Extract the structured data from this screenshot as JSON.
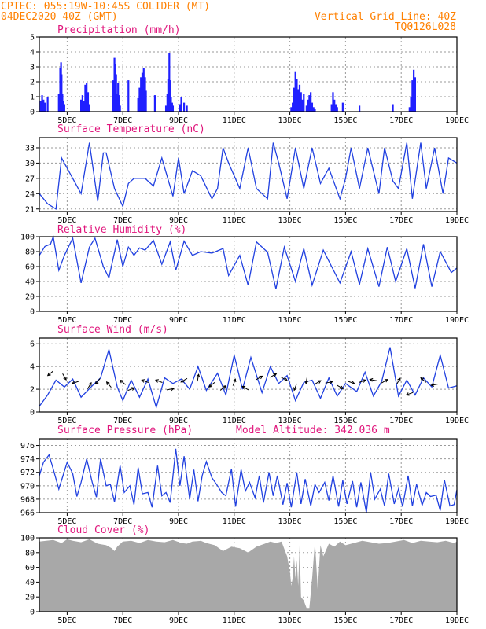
{
  "header": {
    "line1": "CPTEC:   055:19W-10:45S   COLIDER (MT)",
    "line2": "04DEC2020 40Z (GMT)",
    "grid_note": "Vertical Grid Line: 40Z",
    "code": "TQ0126L028"
  },
  "colors": {
    "header": "#ff8000",
    "title": "#e0167c",
    "line": "#2040e0",
    "bar": "#2020ff",
    "cloud": "#a8a8a8",
    "grid": "#9a9a9a"
  },
  "chart_data": [
    {
      "type": "bar",
      "title": "Precipitation (mm/h)",
      "ylim": [
        0,
        5
      ],
      "yticks": [
        "0",
        "1",
        "2",
        "3",
        "4",
        "5"
      ],
      "xticks": [
        "5DEC",
        "7DEC",
        "9DEC",
        "11DEC",
        "13DEC",
        "15DEC",
        "17DEC",
        "19DEC"
      ],
      "grid": true,
      "x_days": [
        4.05,
        4.1,
        4.15,
        4.2,
        4.3,
        4.7,
        4.72,
        4.75,
        4.78,
        4.8,
        4.83,
        4.86,
        4.9,
        5.5,
        5.55,
        5.6,
        5.65,
        5.7,
        5.75,
        5.78,
        6.65,
        6.7,
        6.73,
        6.76,
        6.8,
        6.83,
        6.86,
        6.9,
        7.2,
        7.55,
        7.6,
        7.65,
        7.7,
        7.75,
        7.8,
        7.83,
        8.15,
        8.55,
        8.6,
        8.63,
        8.67,
        8.7,
        8.73,
        8.77,
        8.8,
        9.05,
        9.1,
        9.2,
        9.3,
        13.05,
        13.1,
        13.15,
        13.2,
        13.25,
        13.3,
        13.35,
        13.4,
        13.45,
        13.5,
        13.6,
        13.65,
        13.7,
        13.75,
        13.8,
        13.85,
        13.9,
        14.5,
        14.55,
        14.6,
        14.65,
        14.7,
        14.9,
        15.5,
        16.7,
        17.3,
        17.35,
        17.4,
        17.45,
        17.5
      ],
      "values": [
        0.7,
        1.1,
        0.8,
        0.6,
        1.0,
        1.2,
        1.0,
        2.9,
        3.3,
        2.5,
        1.2,
        0.7,
        0.5,
        0.8,
        1.1,
        0.7,
        1.8,
        1.9,
        1.3,
        0.5,
        2.1,
        3.6,
        3.2,
        2.5,
        1.2,
        1.9,
        1.1,
        0.4,
        2.1,
        0.9,
        1.6,
        2.3,
        2.6,
        2.9,
        2.3,
        1.4,
        1.1,
        0.4,
        1.2,
        2.2,
        3.9,
        2.1,
        1.0,
        0.6,
        0.4,
        0.5,
        1.0,
        0.6,
        0.4,
        0.3,
        0.6,
        1.6,
        2.7,
        2.2,
        1.5,
        1.8,
        1.3,
        0.8,
        1.2,
        0.4,
        0.8,
        1.1,
        1.3,
        0.6,
        0.3,
        0.2,
        0.5,
        1.3,
        0.8,
        0.5,
        0.3,
        0.6,
        0.4,
        0.5,
        0.3,
        1.0,
        2.1,
        2.8,
        2.3
      ]
    },
    {
      "type": "line",
      "title": "Surface Temperature (nC)",
      "ylim": [
        20.5,
        35
      ],
      "yticks": [
        "21",
        "24",
        "27",
        "30",
        "33"
      ],
      "xticks": [
        "5DEC",
        "7DEC",
        "9DEC",
        "11DEC",
        "13DEC",
        "15DEC",
        "17DEC",
        "19DEC"
      ],
      "grid": true,
      "x_days": [
        4.0,
        4.3,
        4.6,
        4.8,
        5.2,
        5.5,
        5.8,
        6.1,
        6.3,
        6.4,
        6.7,
        7.0,
        7.2,
        7.4,
        7.5,
        7.8,
        8.1,
        8.4,
        8.8,
        9.0,
        9.2,
        9.5,
        9.8,
        10.2,
        10.4,
        10.6,
        10.8,
        11.2,
        11.5,
        11.8,
        12.2,
        12.4,
        12.6,
        12.9,
        13.2,
        13.5,
        13.8,
        14.1,
        14.4,
        14.8,
        15.0,
        15.2,
        15.5,
        15.8,
        16.2,
        16.4,
        16.7,
        16.9,
        17.2,
        17.4,
        17.7,
        17.9,
        18.2,
        18.5,
        18.7,
        19.0
      ],
      "values": [
        24,
        22,
        21,
        31,
        27,
        24,
        34,
        22.5,
        32,
        32,
        25,
        21.5,
        26,
        27,
        27,
        27,
        25.5,
        31,
        23.5,
        31,
        24,
        28.5,
        27.5,
        23,
        25,
        33,
        30,
        25,
        33,
        25,
        23,
        34,
        30,
        23,
        33,
        25,
        33,
        26,
        29,
        23,
        27,
        33,
        25,
        33,
        24,
        33,
        26.5,
        25,
        34,
        23,
        34,
        25,
        33,
        24,
        31,
        30
      ]
    },
    {
      "type": "line",
      "title": "Relative Humidity (%)",
      "ylim": [
        0,
        100
      ],
      "yticks": [
        "0",
        "20",
        "40",
        "60",
        "80",
        "100"
      ],
      "xticks": [
        "5DEC",
        "7DEC",
        "9DEC",
        "11DEC",
        "13DEC",
        "15DEC",
        "17DEC",
        "19DEC"
      ],
      "grid": true,
      "x_days": [
        4.0,
        4.2,
        4.4,
        4.5,
        4.7,
        4.9,
        5.2,
        5.5,
        5.8,
        6.0,
        6.3,
        6.5,
        6.8,
        7.0,
        7.2,
        7.4,
        7.6,
        7.8,
        8.1,
        8.4,
        8.7,
        8.9,
        9.2,
        9.5,
        9.8,
        10.2,
        10.6,
        10.8,
        11.2,
        11.5,
        11.8,
        12.2,
        12.5,
        12.8,
        13.2,
        13.5,
        13.8,
        14.2,
        14.5,
        14.8,
        15.2,
        15.5,
        15.8,
        16.2,
        16.5,
        16.8,
        17.2,
        17.5,
        17.8,
        18.1,
        18.4,
        18.8,
        19.0
      ],
      "values": [
        75,
        87,
        90,
        100,
        55,
        75,
        98,
        38,
        86,
        98,
        60,
        45,
        96,
        60,
        86,
        75,
        85,
        82,
        95,
        63,
        93,
        55,
        94,
        75,
        80,
        78,
        84,
        48,
        75,
        35,
        93,
        79,
        30,
        86,
        40,
        84,
        35,
        82,
        60,
        38,
        80,
        36,
        84,
        33,
        86,
        40,
        84,
        31,
        90,
        33,
        80,
        52,
        58
      ]
    },
    {
      "type": "line",
      "title": "Surface Wind (m/s)",
      "ylim": [
        0,
        6.5
      ],
      "yticks": [
        "0",
        "2",
        "4",
        "6"
      ],
      "xticks": [
        "5DEC",
        "7DEC",
        "9DEC",
        "11DEC",
        "13DEC",
        "15DEC",
        "17DEC",
        "19DEC"
      ],
      "grid": true,
      "x_days": [
        4.0,
        4.3,
        4.6,
        4.9,
        5.2,
        5.5,
        5.9,
        6.2,
        6.5,
        6.8,
        7.0,
        7.3,
        7.6,
        7.9,
        8.2,
        8.5,
        8.8,
        9.1,
        9.4,
        9.7,
        10.0,
        10.4,
        10.7,
        11.0,
        11.3,
        11.6,
        12.0,
        12.3,
        12.6,
        12.9,
        13.2,
        13.5,
        13.8,
        14.1,
        14.4,
        14.7,
        15.0,
        15.4,
        15.7,
        16.0,
        16.3,
        16.6,
        16.9,
        17.2,
        17.5,
        17.8,
        18.1,
        18.4,
        18.7,
        19.0
      ],
      "values": [
        0.5,
        1.5,
        2.8,
        2.2,
        2.9,
        1.3,
        2.3,
        3.0,
        5.5,
        2.2,
        1.0,
        2.8,
        1.3,
        2.9,
        0.4,
        3.0,
        2.5,
        2.9,
        2.0,
        4.0,
        1.9,
        3.4,
        1.5,
        5.0,
        2.0,
        4.8,
        1.7,
        4.0,
        2.5,
        3.2,
        1.0,
        2.6,
        2.8,
        1.2,
        3.0,
        1.4,
        2.5,
        1.8,
        3.5,
        1.4,
        2.7,
        5.7,
        1.4,
        2.8,
        1.5,
        3.0,
        2.2,
        5.0,
        2.1,
        2.3
      ],
      "arrow_days": [
        4.4,
        4.9,
        5.3,
        5.8,
        6.1,
        6.5,
        7.0,
        7.3,
        7.8,
        8.3,
        8.7,
        9.2,
        9.7,
        10.2,
        10.6,
        11.0,
        11.4,
        11.9,
        12.4,
        12.8,
        13.2,
        13.6,
        14.0,
        14.4,
        14.8,
        15.2,
        15.6,
        16.0,
        16.4,
        16.9,
        17.3,
        17.8,
        18.2
      ],
      "arrow_speed": [
        3.4,
        3.1,
        2.6,
        2.3,
        2.7,
        2.4,
        2.6,
        2.0,
        2.7,
        2.7,
        2.0,
        2.8,
        3.0,
        2.4,
        2.1,
        2.6,
        2.1,
        3.0,
        3.2,
        2.9,
        2.2,
        2.8,
        2.6,
        2.6,
        2.2,
        2.6,
        2.7,
        2.8,
        2.7,
        2.7,
        1.6,
        2.8,
        2.4
      ],
      "arrow_angle": [
        220,
        300,
        200,
        60,
        230,
        130,
        140,
        20,
        160,
        160,
        10,
        210,
        80,
        220,
        40,
        70,
        150,
        30,
        30,
        330,
        250,
        260,
        30,
        10,
        330,
        340,
        20,
        170,
        30,
        60,
        200,
        140,
        190
      ]
    },
    {
      "type": "line",
      "title": "Surface Pressure (hPa)",
      "subtitle": "Model Altitude: 342.036 m",
      "ylim": [
        966,
        977
      ],
      "yticks": [
        "966",
        "968",
        "970",
        "972",
        "974",
        "976"
      ],
      "xticks": [
        "5DEC",
        "7DEC",
        "9DEC",
        "11DEC",
        "13DEC",
        "15DEC",
        "17DEC",
        "19DEC"
      ],
      "grid": true,
      "x_days": [
        4.0,
        4.15,
        4.35,
        4.5,
        4.7,
        4.85,
        5.0,
        5.2,
        5.35,
        5.5,
        5.7,
        5.9,
        6.05,
        6.2,
        6.4,
        6.55,
        6.7,
        6.9,
        7.05,
        7.25,
        7.4,
        7.55,
        7.7,
        7.9,
        8.05,
        8.25,
        8.4,
        8.55,
        8.7,
        8.9,
        9.05,
        9.2,
        9.4,
        9.55,
        9.7,
        9.85,
        10.0,
        10.2,
        10.4,
        10.55,
        10.7,
        10.9,
        11.05,
        11.25,
        11.4,
        11.55,
        11.75,
        11.9,
        12.05,
        12.25,
        12.4,
        12.55,
        12.75,
        12.9,
        13.05,
        13.25,
        13.4,
        13.55,
        13.75,
        13.9,
        14.05,
        14.25,
        14.4,
        14.55,
        14.75,
        14.9,
        15.05,
        15.25,
        15.4,
        15.55,
        15.75,
        15.9,
        16.05,
        16.25,
        16.4,
        16.55,
        16.75,
        16.9,
        17.05,
        17.25,
        17.4,
        17.55,
        17.75,
        17.9,
        18.05,
        18.25,
        18.4,
        18.55,
        18.75,
        18.9,
        19.0
      ],
      "values": [
        971.5,
        973.5,
        974.6,
        972.5,
        969.5,
        971.5,
        973.5,
        971.8,
        968.4,
        970.5,
        974.0,
        970.5,
        968.3,
        974.0,
        970.0,
        970.2,
        967.6,
        973.0,
        969.0,
        970.0,
        967.2,
        972.7,
        968.8,
        969.0,
        966.8,
        973.0,
        968.5,
        969.0,
        967.5,
        975.5,
        970.0,
        974.4,
        968.0,
        972.4,
        967.7,
        971.5,
        973.6,
        971.2,
        970.0,
        969.0,
        968.5,
        972.5,
        966.9,
        972.4,
        969.2,
        970.5,
        968.2,
        971.5,
        967.5,
        972.0,
        968.5,
        971.5,
        967.2,
        970.4,
        966.8,
        972.0,
        967.3,
        971.0,
        967.0,
        970.2,
        969.0,
        970.5,
        967.8,
        971.5,
        966.9,
        970.8,
        967.3,
        970.7,
        966.8,
        970.5,
        966.0,
        972.0,
        968.0,
        969.5,
        967.0,
        971.8,
        967.3,
        969.5,
        966.9,
        971.5,
        967.0,
        970.2,
        967.1,
        969.0,
        968.4,
        968.6,
        966.3,
        970.9,
        967.0,
        967.2,
        969.4
      ]
    },
    {
      "type": "area",
      "title": "Cloud Cover (%)",
      "ylim": [
        0,
        100
      ],
      "yticks": [
        "0",
        "20",
        "40",
        "60",
        "80",
        "100"
      ],
      "xticks": [
        "5DEC",
        "7DEC",
        "9DEC",
        "11DEC",
        "13DEC",
        "15DEC",
        "17DEC",
        "19DEC"
      ],
      "grid": true,
      "x_days": [
        4.0,
        4.5,
        4.8,
        5.0,
        5.2,
        5.5,
        5.8,
        6.1,
        6.4,
        6.6,
        6.7,
        6.8,
        7.0,
        7.3,
        7.6,
        7.9,
        8.2,
        8.5,
        8.8,
        9.1,
        9.3,
        9.5,
        9.8,
        10.0,
        10.3,
        10.6,
        10.9,
        11.2,
        11.5,
        11.8,
        12.1,
        12.3,
        12.5,
        12.7,
        12.8,
        12.9,
        13.0,
        13.05,
        13.1,
        13.15,
        13.2,
        13.25,
        13.3,
        13.35,
        13.4,
        13.5,
        13.6,
        13.7,
        13.8,
        13.9,
        14.0,
        14.1,
        14.2,
        14.4,
        14.6,
        14.8,
        15.0,
        15.3,
        15.6,
        15.9,
        16.2,
        16.5,
        16.8,
        17.1,
        17.4,
        17.7,
        18.0,
        18.3,
        18.6,
        18.9,
        19.0
      ],
      "values": [
        95,
        97,
        93,
        98,
        96,
        94,
        98,
        92,
        90,
        86,
        82,
        88,
        95,
        96,
        93,
        97,
        95,
        94,
        97,
        93,
        92,
        95,
        96,
        93,
        90,
        82,
        88,
        86,
        80,
        88,
        92,
        95,
        93,
        95,
        85,
        75,
        55,
        35,
        45,
        75,
        45,
        70,
        35,
        90,
        20,
        15,
        5,
        5,
        45,
        95,
        30,
        90,
        75,
        92,
        88,
        95,
        90,
        93,
        96,
        94,
        92,
        93,
        95,
        97,
        93,
        96,
        95,
        94,
        96,
        93,
        95
      ]
    }
  ]
}
